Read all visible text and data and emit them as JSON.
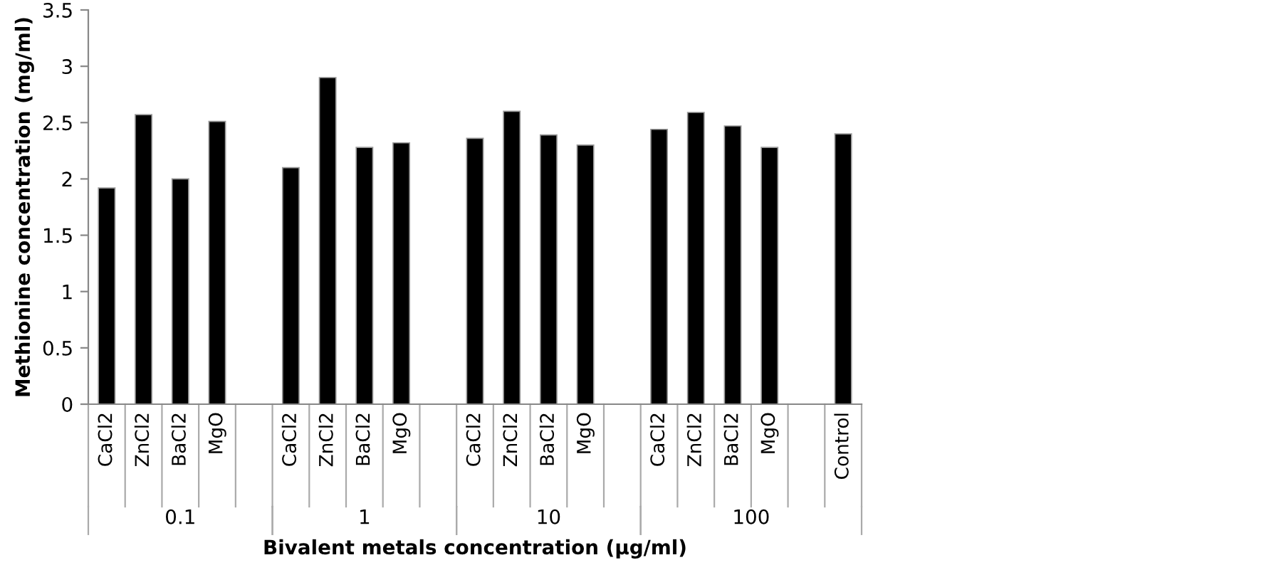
{
  "chart_data": {
    "type": "bar",
    "xlabel": "Bivalent metals concentration (µg/ml)",
    "ylabel": "Methionine concentration (mg/ml)",
    "categories": [
      "CaCl2",
      "ZnCl2",
      "BaCl2",
      "MgO",
      null,
      "CaCl2",
      "ZnCl2",
      "BaCl2",
      "MgO",
      null,
      "CaCl2",
      "ZnCl2",
      "BaCl2",
      "MgO",
      null,
      "CaCl2",
      "ZnCl2",
      "BaCl2",
      "MgO",
      null,
      "Control"
    ],
    "values": [
      1.92,
      2.57,
      2.0,
      2.51,
      null,
      2.1,
      2.9,
      2.28,
      2.32,
      null,
      2.36,
      2.6,
      2.39,
      2.3,
      null,
      2.44,
      2.59,
      2.47,
      2.28,
      null,
      2.4
    ],
    "color": "#000000",
    "annotations": [
      "0.1",
      "1",
      "10",
      "100"
    ],
    "ylim": [
      0,
      3.5
    ],
    "yticks": [
      0,
      0.5,
      1,
      1.5,
      2,
      2.5,
      3,
      3.5
    ],
    "grid": false,
    "legend": false
  }
}
